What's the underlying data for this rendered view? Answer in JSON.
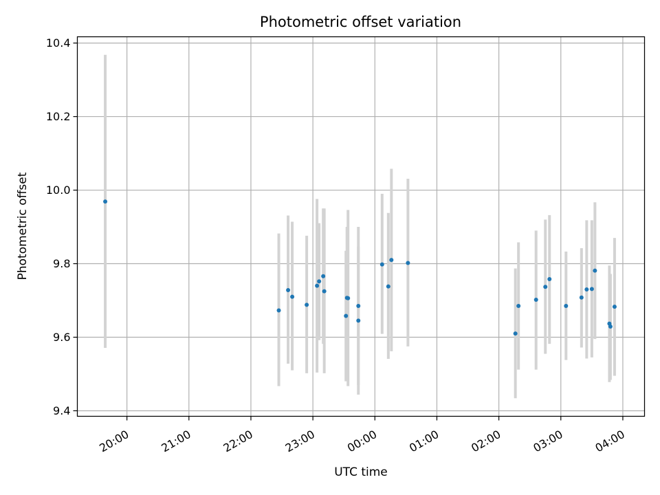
{
  "chart_data": {
    "type": "scatter",
    "title": "Photometric offset variation",
    "xlabel": "UTC time",
    "ylabel": "Photometric offset",
    "x_axis": {
      "format": "time",
      "range_hours": [
        19.2,
        28.35
      ],
      "ticks": [
        {
          "h": 20,
          "label": "20:00"
        },
        {
          "h": 21,
          "label": "21:00"
        },
        {
          "h": 22,
          "label": "22:00"
        },
        {
          "h": 23,
          "label": "23:00"
        },
        {
          "h": 24,
          "label": "00:00"
        },
        {
          "h": 25,
          "label": "01:00"
        },
        {
          "h": 26,
          "label": "02:00"
        },
        {
          "h": 27,
          "label": "03:00"
        },
        {
          "h": 28,
          "label": "04:00"
        }
      ]
    },
    "y_axis": {
      "range": [
        9.385,
        10.417
      ],
      "ticks": [
        {
          "v": 9.4,
          "label": "9.4"
        },
        {
          "v": 9.6,
          "label": "9.6"
        },
        {
          "v": 9.8,
          "label": "9.8"
        },
        {
          "v": 10.0,
          "label": "10.0"
        },
        {
          "v": 10.2,
          "label": "10.2"
        },
        {
          "v": 10.4,
          "label": "10.4"
        }
      ]
    },
    "grid": true,
    "colors": {
      "point": "#1f77b4",
      "errorbar": "#d3d3d3",
      "grid": "#b0b0b0"
    },
    "points": [
      {
        "t": "19:39",
        "y": 9.969,
        "lo": 9.571,
        "hi": 10.368
      },
      {
        "t": "22:27",
        "y": 9.673,
        "lo": 9.467,
        "hi": 9.882
      },
      {
        "t": "22:36",
        "y": 9.728,
        "lo": 9.528,
        "hi": 9.931
      },
      {
        "t": "22:40",
        "y": 9.71,
        "lo": 9.51,
        "hi": 9.914
      },
      {
        "t": "22:54",
        "y": 9.688,
        "lo": 9.502,
        "hi": 9.876
      },
      {
        "t": "23:04",
        "y": 9.74,
        "lo": 9.504,
        "hi": 9.976
      },
      {
        "t": "23:06",
        "y": 9.752,
        "lo": 9.592,
        "hi": 9.91
      },
      {
        "t": "23:10",
        "y": 9.766,
        "lo": 9.582,
        "hi": 9.95
      },
      {
        "t": "23:11",
        "y": 9.725,
        "lo": 9.502,
        "hi": 9.95
      },
      {
        "t": "23:32",
        "y": 9.658,
        "lo": 9.48,
        "hi": 9.835
      },
      {
        "t": "23:33",
        "y": 9.707,
        "lo": 9.53,
        "hi": 9.9
      },
      {
        "t": "23:34",
        "y": 9.706,
        "lo": 9.467,
        "hi": 9.946
      },
      {
        "t": "23:44",
        "y": 9.685,
        "lo": 9.47,
        "hi": 9.9
      },
      {
        "t": "23:44",
        "y": 9.645,
        "lo": 9.444,
        "hi": 9.846
      },
      {
        "t": "00:07",
        "y": 9.798,
        "lo": 9.609,
        "hi": 9.99
      },
      {
        "t": "00:13",
        "y": 9.738,
        "lo": 9.541,
        "hi": 9.938
      },
      {
        "t": "00:16",
        "y": 9.81,
        "lo": 9.562,
        "hi": 10.058
      },
      {
        "t": "00:32",
        "y": 9.802,
        "lo": 9.575,
        "hi": 10.031
      },
      {
        "t": "02:16",
        "y": 9.61,
        "lo": 9.434,
        "hi": 9.787
      },
      {
        "t": "02:19",
        "y": 9.685,
        "lo": 9.512,
        "hi": 9.858
      },
      {
        "t": "02:36",
        "y": 9.702,
        "lo": 9.512,
        "hi": 9.89
      },
      {
        "t": "02:45",
        "y": 9.737,
        "lo": 9.555,
        "hi": 9.92
      },
      {
        "t": "02:49",
        "y": 9.758,
        "lo": 9.582,
        "hi": 9.932
      },
      {
        "t": "03:05",
        "y": 9.685,
        "lo": 9.538,
        "hi": 9.833
      },
      {
        "t": "03:20",
        "y": 9.708,
        "lo": 9.572,
        "hi": 9.842
      },
      {
        "t": "03:25",
        "y": 9.73,
        "lo": 9.542,
        "hi": 9.918
      },
      {
        "t": "03:30",
        "y": 9.731,
        "lo": 9.545,
        "hi": 9.918
      },
      {
        "t": "03:33",
        "y": 9.781,
        "lo": 9.595,
        "hi": 9.967
      },
      {
        "t": "03:47",
        "y": 9.637,
        "lo": 9.478,
        "hi": 9.795
      },
      {
        "t": "03:48",
        "y": 9.629,
        "lo": 9.484,
        "hi": 9.772
      },
      {
        "t": "03:52",
        "y": 9.683,
        "lo": 9.495,
        "hi": 9.87
      }
    ]
  }
}
